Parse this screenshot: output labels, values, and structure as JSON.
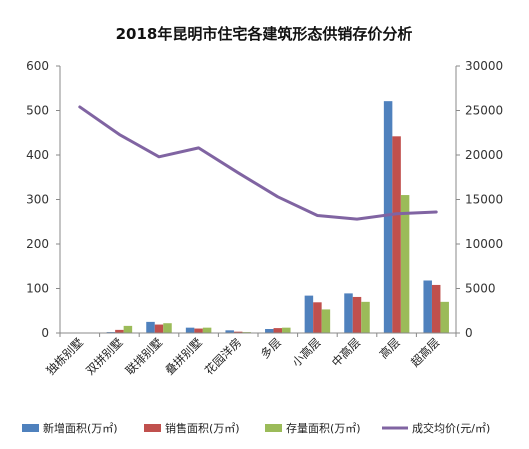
{
  "chart_data": {
    "type": "bar",
    "title": "2018年昆明市住宅各建筑形态供销存价分析",
    "categories": [
      "独栋别墅",
      "双拼别墅",
      "联排别墅",
      "叠拼别墅",
      "花园洋房",
      "多层",
      "小高层",
      "中高层",
      "高层",
      "超高层"
    ],
    "series": [
      {
        "name": "新增面积(万㎡)",
        "kind": "bar",
        "axis": "left",
        "color": "#4f81bd",
        "values": [
          1,
          2,
          25,
          12,
          6,
          9,
          84,
          89,
          521,
          118
        ]
      },
      {
        "name": "销售面积(万㎡)",
        "kind": "bar",
        "axis": "left",
        "color": "#c0504d",
        "values": [
          1,
          7,
          19,
          10,
          3,
          11,
          69,
          81,
          442,
          108
        ]
      },
      {
        "name": "存量面积(万㎡)",
        "kind": "bar",
        "axis": "left",
        "color": "#9bbb59",
        "values": [
          1,
          16,
          22,
          12,
          2,
          12,
          53,
          70,
          310,
          70
        ]
      },
      {
        "name": "成交均价(元/㎡)",
        "kind": "line",
        "axis": "right",
        "color": "#8064a2",
        "values": [
          25400,
          22300,
          19800,
          20800,
          18000,
          15300,
          13200,
          12800,
          13400,
          13600
        ]
      }
    ],
    "y_left": {
      "min": 0,
      "max": 600,
      "ticks": [
        "0",
        "100",
        "200",
        "300",
        "400",
        "500",
        "600"
      ]
    },
    "y_right": {
      "min": 0,
      "max": 30000,
      "ticks": [
        "0",
        "5000",
        "10000",
        "15000",
        "20000",
        "25000",
        "30000"
      ]
    },
    "grid": false,
    "legend_position": "bottom"
  }
}
